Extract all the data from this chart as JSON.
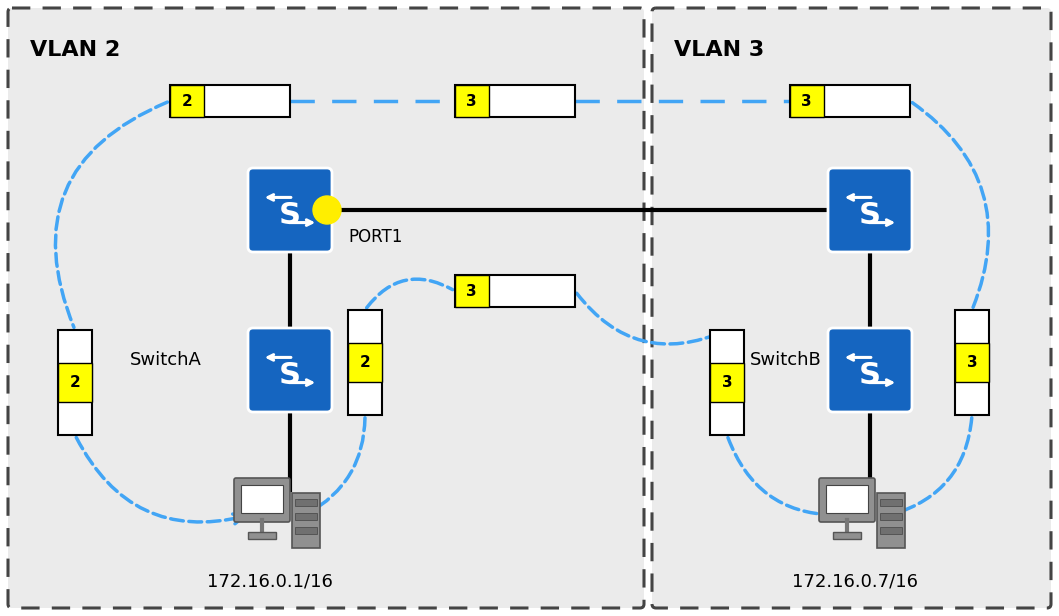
{
  "bg_color": "#e8e8e8",
  "vlan2_label": "VLAN 2",
  "vlan3_label": "VLAN 3",
  "switchA_label": "SwitchA",
  "switchB_label": "SwitchB",
  "port1_label": "PORT1",
  "ip_a": "172.16.0.1/16",
  "ip_b": "172.16.0.7/16",
  "switch_color": "#1565c0",
  "yellow_color": "#ffff00",
  "dashed_color": "#42a5f5",
  "solid_color": "#000000",
  "box_bg": "#ebebeb",
  "box_edge": "#444444"
}
